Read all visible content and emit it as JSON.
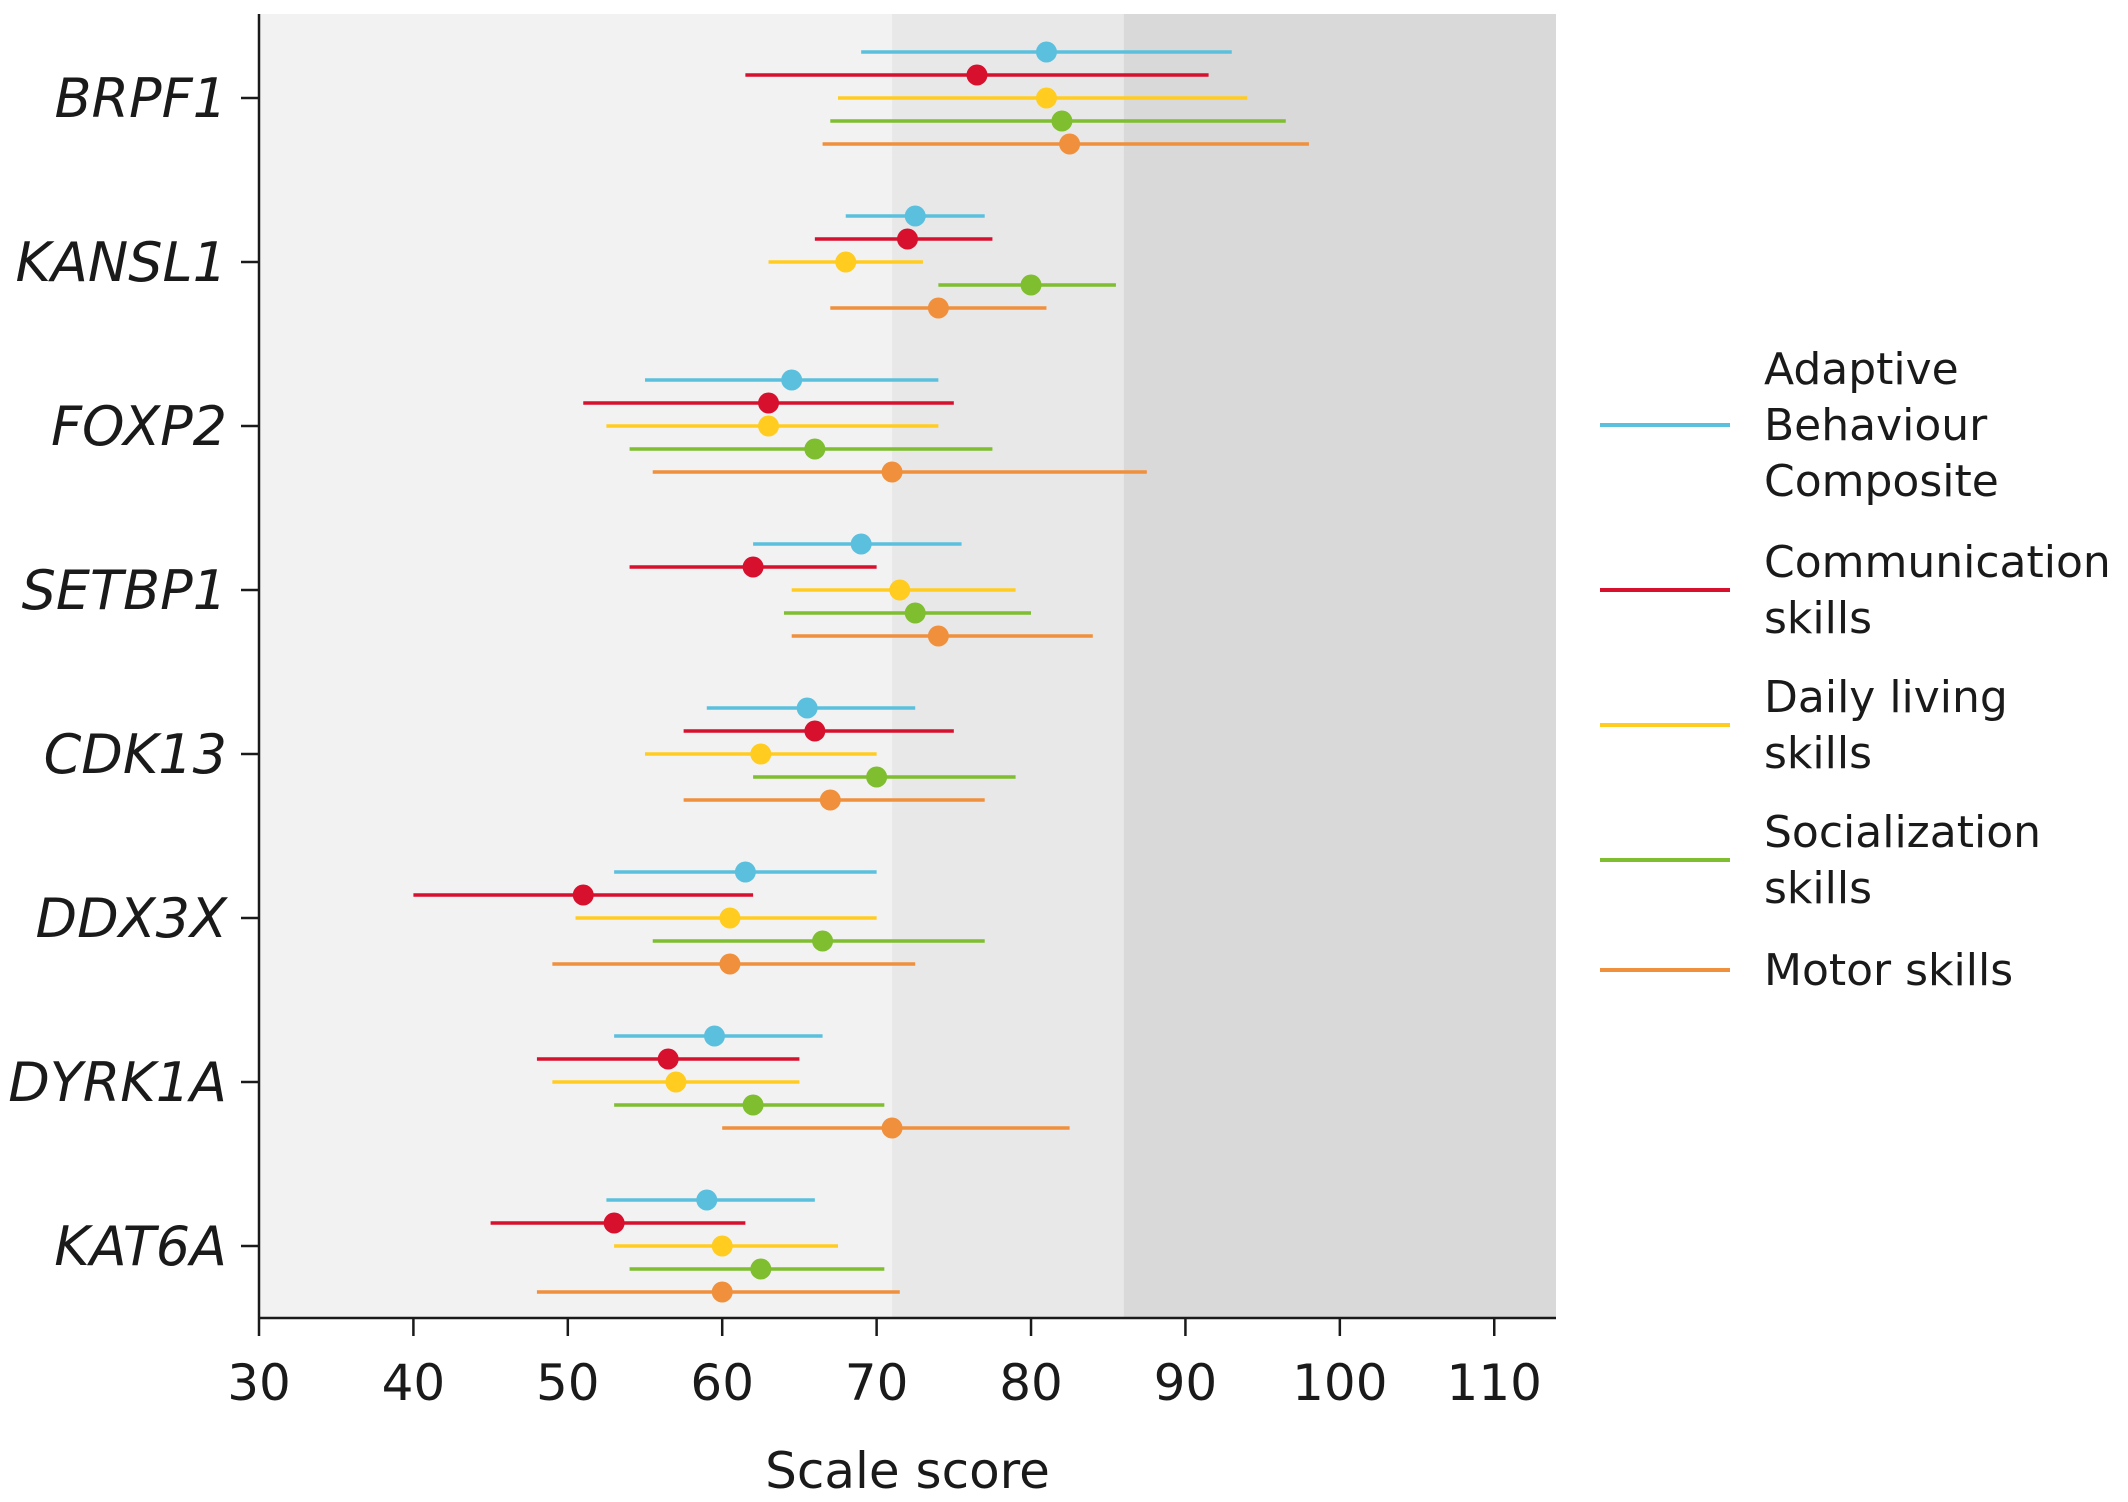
{
  "chart_data": {
    "type": "scatter",
    "subtype": "dot-and-whisker (mean with interval)",
    "xlabel": "Scale score",
    "xlim": [
      30,
      114
    ],
    "xticks": [
      30,
      40,
      50,
      60,
      70,
      80,
      90,
      100,
      110
    ],
    "categories": [
      "BRPF1",
      "KANSL1",
      "FOXP2",
      "SETBP1",
      "CDK13",
      "DDX3X",
      "DYRK1A",
      "KAT6A"
    ],
    "background_bands": [
      {
        "from": 30,
        "to": 71,
        "color": "#f2f2f2"
      },
      {
        "from": 71,
        "to": 86,
        "color": "#e8e8e8"
      },
      {
        "from": 86,
        "to": 114,
        "color": "#d9d9d9"
      }
    ],
    "legend_position": "right",
    "series": [
      {
        "name": "Adaptive Behaviour Composite",
        "legend_lines": [
          "Adaptive",
          "Behaviour",
          "Composite"
        ],
        "color": "#5bc0de",
        "points": [
          {
            "mean": 81,
            "low": 69,
            "high": 93
          },
          {
            "mean": 72.5,
            "low": 68,
            "high": 77
          },
          {
            "mean": 64.5,
            "low": 55,
            "high": 74
          },
          {
            "mean": 69,
            "low": 62,
            "high": 75.5
          },
          {
            "mean": 65.5,
            "low": 59,
            "high": 72.5
          },
          {
            "mean": 61.5,
            "low": 53,
            "high": 70
          },
          {
            "mean": 59.5,
            "low": 53,
            "high": 66.5
          },
          {
            "mean": 59,
            "low": 52.5,
            "high": 66
          }
        ]
      },
      {
        "name": "Communication skills",
        "legend_lines": [
          "Communication",
          "skills"
        ],
        "color": "#d7102e",
        "points": [
          {
            "mean": 76.5,
            "low": 61.5,
            "high": 91.5
          },
          {
            "mean": 72,
            "low": 66,
            "high": 77.5
          },
          {
            "mean": 63,
            "low": 51,
            "high": 75
          },
          {
            "mean": 62,
            "low": 54,
            "high": 70
          },
          {
            "mean": 66,
            "low": 57.5,
            "high": 75
          },
          {
            "mean": 51,
            "low": 40,
            "high": 62
          },
          {
            "mean": 56.5,
            "low": 48,
            "high": 65
          },
          {
            "mean": 53,
            "low": 45,
            "high": 61.5
          }
        ]
      },
      {
        "name": "Daily living skills",
        "legend_lines": [
          "Daily living",
          "skills"
        ],
        "color": "#ffcc1f",
        "points": [
          {
            "mean": 81,
            "low": 67.5,
            "high": 94
          },
          {
            "mean": 68,
            "low": 63,
            "high": 73
          },
          {
            "mean": 63,
            "low": 52.5,
            "high": 74
          },
          {
            "mean": 71.5,
            "low": 64.5,
            "high": 79
          },
          {
            "mean": 62.5,
            "low": 55,
            "high": 70
          },
          {
            "mean": 60.5,
            "low": 50.5,
            "high": 70
          },
          {
            "mean": 57,
            "low": 49,
            "high": 65
          },
          {
            "mean": 60,
            "low": 53,
            "high": 67.5
          }
        ]
      },
      {
        "name": "Socialization skills",
        "legend_lines": [
          "Socialization",
          "skills"
        ],
        "color": "#7ebe2f",
        "points": [
          {
            "mean": 82,
            "low": 67,
            "high": 96.5
          },
          {
            "mean": 80,
            "low": 74,
            "high": 85.5
          },
          {
            "mean": 66,
            "low": 54,
            "high": 77.5
          },
          {
            "mean": 72.5,
            "low": 64,
            "high": 80
          },
          {
            "mean": 70,
            "low": 62,
            "high": 79
          },
          {
            "mean": 66.5,
            "low": 55.5,
            "high": 77
          },
          {
            "mean": 62,
            "low": 53,
            "high": 70.5
          },
          {
            "mean": 62.5,
            "low": 54,
            "high": 70.5
          }
        ]
      },
      {
        "name": "Motor skills",
        "legend_lines": [
          "Motor skills"
        ],
        "color": "#f0903c",
        "points": [
          {
            "mean": 82.5,
            "low": 66.5,
            "high": 98
          },
          {
            "mean": 74,
            "low": 67,
            "high": 81
          },
          {
            "mean": 71,
            "low": 55.5,
            "high": 87.5
          },
          {
            "mean": 74,
            "low": 64.5,
            "high": 84
          },
          {
            "mean": 67,
            "low": 57.5,
            "high": 77
          },
          {
            "mean": 60.5,
            "low": 49,
            "high": 72.5
          },
          {
            "mean": 71,
            "low": 60,
            "high": 82.5
          },
          {
            "mean": 60,
            "low": 48,
            "high": 71.5
          }
        ]
      }
    ]
  }
}
